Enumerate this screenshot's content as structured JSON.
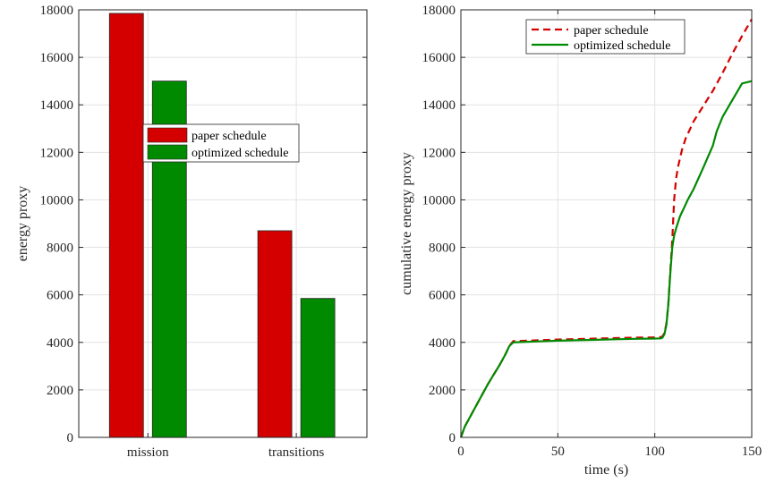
{
  "chart_data": [
    {
      "type": "bar",
      "categories": [
        "mission",
        "transitions"
      ],
      "series": [
        {
          "name": "paper schedule",
          "color": "#d40000",
          "values": [
            17850,
            8700
          ]
        },
        {
          "name": "optimized schedule",
          "color": "#008a00",
          "values": [
            15000,
            5850
          ]
        }
      ],
      "xlabel": "",
      "ylabel": "energy proxy",
      "ylim": [
        0,
        18000
      ],
      "yticks": [
        0,
        2000,
        4000,
        6000,
        8000,
        10000,
        12000,
        14000,
        16000,
        18000
      ],
      "grid": true,
      "legend": "center-right"
    },
    {
      "type": "line",
      "series": [
        {
          "name": "paper schedule",
          "color": "#d40000",
          "style": "dashed",
          "points": [
            [
              0,
              0
            ],
            [
              2,
              450
            ],
            [
              5,
              900
            ],
            [
              8,
              1350
            ],
            [
              11,
              1800
            ],
            [
              14,
              2250
            ],
            [
              17,
              2650
            ],
            [
              20,
              3050
            ],
            [
              23,
              3500
            ],
            [
              25,
              3850
            ],
            [
              27,
              4050
            ],
            [
              30,
              4060
            ],
            [
              40,
              4090
            ],
            [
              50,
              4120
            ],
            [
              60,
              4140
            ],
            [
              70,
              4160
            ],
            [
              80,
              4180
            ],
            [
              90,
              4200
            ],
            [
              100,
              4210
            ],
            [
              103,
              4220
            ],
            [
              104,
              4250
            ],
            [
              105,
              4400
            ],
            [
              106,
              4800
            ],
            [
              107,
              5600
            ],
            [
              108,
              7000
            ],
            [
              109,
              8300
            ],
            [
              110,
              10000
            ],
            [
              111,
              10900
            ],
            [
              112,
              11400
            ],
            [
              114,
              12100
            ],
            [
              116,
              12600
            ],
            [
              118,
              12950
            ],
            [
              120,
              13300
            ],
            [
              125,
              13950
            ],
            [
              130,
              14600
            ],
            [
              135,
              15350
            ],
            [
              140,
              16150
            ],
            [
              145,
              16900
            ],
            [
              150,
              17600
            ]
          ]
        },
        {
          "name": "optimized schedule",
          "color": "#008a00",
          "style": "solid",
          "points": [
            [
              0,
              0
            ],
            [
              2,
              450
            ],
            [
              5,
              900
            ],
            [
              8,
              1350
            ],
            [
              11,
              1800
            ],
            [
              14,
              2250
            ],
            [
              17,
              2650
            ],
            [
              20,
              3050
            ],
            [
              23,
              3500
            ],
            [
              25,
              3850
            ],
            [
              27,
              4000
            ],
            [
              30,
              4010
            ],
            [
              40,
              4040
            ],
            [
              50,
              4070
            ],
            [
              60,
              4090
            ],
            [
              70,
              4110
            ],
            [
              80,
              4130
            ],
            [
              90,
              4150
            ],
            [
              100,
              4160
            ],
            [
              103,
              4170
            ],
            [
              104,
              4200
            ],
            [
              105,
              4350
            ],
            [
              106,
              4750
            ],
            [
              107,
              5600
            ],
            [
              108,
              6900
            ],
            [
              109,
              8000
            ],
            [
              110,
              8500
            ],
            [
              111,
              8800
            ],
            [
              113,
              9300
            ],
            [
              115,
              9650
            ],
            [
              117,
              10000
            ],
            [
              120,
              10450
            ],
            [
              125,
              11350
            ],
            [
              130,
              12300
            ],
            [
              132,
              12900
            ],
            [
              135,
              13500
            ],
            [
              140,
              14200
            ],
            [
              145,
              14900
            ],
            [
              150,
              15000
            ]
          ]
        }
      ],
      "xlabel": "time (s)",
      "ylabel": "cumulative energy proxy",
      "xlim": [
        0,
        150
      ],
      "ylim": [
        0,
        18000
      ],
      "xticks": [
        0,
        50,
        100,
        150
      ],
      "yticks": [
        0,
        2000,
        4000,
        6000,
        8000,
        10000,
        12000,
        14000,
        16000,
        18000
      ],
      "grid": true,
      "legend": "top-right"
    }
  ]
}
